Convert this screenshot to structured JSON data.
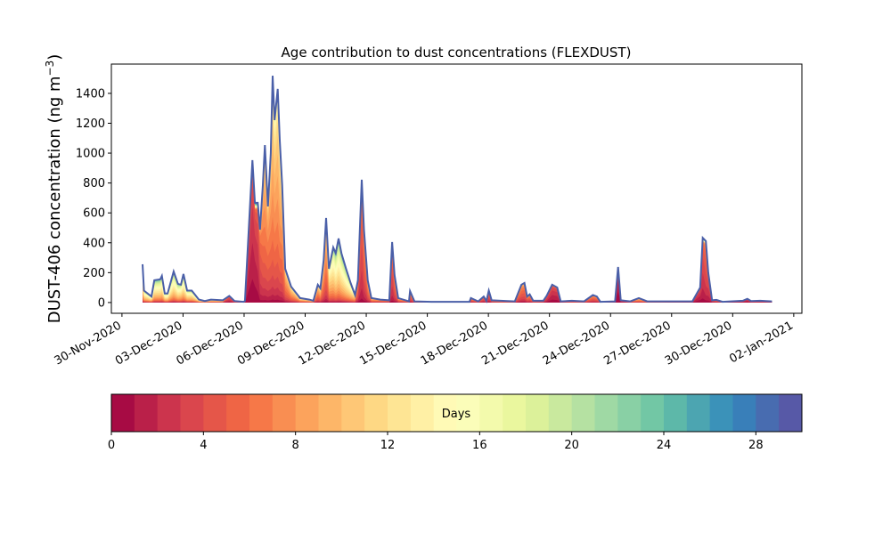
{
  "chart_data": {
    "type": "area",
    "stacked": true,
    "title": "Age contribution to dust concentrations (FLEXDUST)",
    "ylabel": "DUST-406 concentration (ng m",
    "ylabel_sup": "−3",
    "ylabel_close": ")",
    "xlabel": "",
    "ylim": [
      -72,
      1596
    ],
    "xlim_days_from_30Nov2020": [
      -0.52,
      33.4
    ],
    "yticks": [
      0,
      200,
      400,
      600,
      800,
      1000,
      1200,
      1400
    ],
    "xticks": [
      {
        "day": 0,
        "label": "30-Nov-2020"
      },
      {
        "day": 3,
        "label": "03-Dec-2020"
      },
      {
        "day": 6,
        "label": "06-Dec-2020"
      },
      {
        "day": 9,
        "label": "09-Dec-2020"
      },
      {
        "day": 12,
        "label": "12-Dec-2020"
      },
      {
        "day": 15,
        "label": "15-Dec-2020"
      },
      {
        "day": 18,
        "label": "18-Dec-2020"
      },
      {
        "day": 21,
        "label": "21-Dec-2020"
      },
      {
        "day": 24,
        "label": "24-Dec-2020"
      },
      {
        "day": 27,
        "label": "27-Dec-2020"
      },
      {
        "day": 30,
        "label": "30-Dec-2020"
      },
      {
        "day": 33,
        "label": "02-Jan-2021"
      }
    ],
    "series_note": "total concentration with approximate dominant age (days) per time step",
    "series": [
      [
        1.01,
        256,
        12
      ],
      [
        1.08,
        80,
        12
      ],
      [
        1.45,
        40,
        12
      ],
      [
        1.59,
        149,
        13
      ],
      [
        1.88,
        155,
        13
      ],
      [
        1.96,
        179,
        13
      ],
      [
        2.1,
        60,
        12
      ],
      [
        2.24,
        60,
        12
      ],
      [
        2.54,
        208,
        13
      ],
      [
        2.75,
        125,
        13
      ],
      [
        2.9,
        119,
        12
      ],
      [
        3.02,
        191,
        13
      ],
      [
        3.2,
        80,
        12
      ],
      [
        3.43,
        80,
        12
      ],
      [
        3.78,
        20,
        11
      ],
      [
        4.07,
        10,
        10
      ],
      [
        4.37,
        20,
        10
      ],
      [
        4.95,
        15,
        9
      ],
      [
        5.27,
        44,
        3
      ],
      [
        5.53,
        10,
        5
      ],
      [
        5.97,
        5,
        5
      ],
      [
        6.04,
        10,
        3
      ],
      [
        6.19,
        390,
        2
      ],
      [
        6.41,
        953,
        2
      ],
      [
        6.53,
        667,
        2
      ],
      [
        6.67,
        667,
        2.5
      ],
      [
        6.78,
        488,
        4
      ],
      [
        6.92,
        786,
        6
      ],
      [
        7.02,
        1054,
        7
      ],
      [
        7.17,
        643,
        6
      ],
      [
        7.31,
        1000,
        7
      ],
      [
        7.4,
        1518,
        8
      ],
      [
        7.5,
        1221,
        8
      ],
      [
        7.65,
        1430,
        8
      ],
      [
        7.75,
        1084,
        8
      ],
      [
        7.87,
        786,
        7
      ],
      [
        8.02,
        226,
        7
      ],
      [
        8.31,
        107,
        8
      ],
      [
        8.75,
        30,
        9
      ],
      [
        9.2,
        20,
        9
      ],
      [
        9.4,
        12,
        8
      ],
      [
        9.62,
        119,
        7
      ],
      [
        9.75,
        95,
        8
      ],
      [
        9.91,
        286,
        7
      ],
      [
        10.03,
        566,
        7
      ],
      [
        10.17,
        226,
        10
      ],
      [
        10.38,
        369,
        12
      ],
      [
        10.5,
        330,
        13
      ],
      [
        10.64,
        429,
        13
      ],
      [
        10.78,
        330,
        13
      ],
      [
        11.01,
        226,
        13
      ],
      [
        11.23,
        131,
        12
      ],
      [
        11.45,
        50,
        9
      ],
      [
        11.59,
        149,
        5
      ],
      [
        11.78,
        822,
        4
      ],
      [
        11.89,
        488,
        5
      ],
      [
        12.07,
        149,
        6
      ],
      [
        12.25,
        30,
        7
      ],
      [
        12.69,
        20,
        6
      ],
      [
        13.13,
        15,
        5
      ],
      [
        13.27,
        405,
        4
      ],
      [
        13.39,
        185,
        5
      ],
      [
        13.57,
        30,
        6
      ],
      [
        14.1,
        8,
        6
      ],
      [
        14.15,
        77,
        5
      ],
      [
        14.37,
        8,
        6
      ],
      [
        15.2,
        5,
        10
      ],
      [
        17.07,
        5,
        8
      ],
      [
        17.14,
        30,
        5
      ],
      [
        17.5,
        8,
        5
      ],
      [
        17.77,
        40,
        4
      ],
      [
        17.9,
        10,
        4
      ],
      [
        18.02,
        80,
        4
      ],
      [
        18.16,
        15,
        5
      ],
      [
        18.6,
        12,
        6
      ],
      [
        19.3,
        8,
        6
      ],
      [
        19.62,
        119,
        5
      ],
      [
        19.77,
        131,
        5
      ],
      [
        19.9,
        40,
        5
      ],
      [
        20.03,
        55,
        5
      ],
      [
        20.2,
        12,
        5
      ],
      [
        20.7,
        12,
        4
      ],
      [
        20.86,
        45,
        3
      ],
      [
        21.13,
        119,
        2
      ],
      [
        21.38,
        101,
        2
      ],
      [
        21.55,
        8,
        3
      ],
      [
        22.1,
        12,
        5
      ],
      [
        22.7,
        8,
        5
      ],
      [
        23.13,
        50,
        5
      ],
      [
        23.33,
        40,
        5
      ],
      [
        23.5,
        5,
        4
      ],
      [
        24.22,
        8,
        2
      ],
      [
        24.37,
        238,
        1
      ],
      [
        24.5,
        15,
        2
      ],
      [
        24.97,
        8,
        4
      ],
      [
        25.39,
        30,
        7
      ],
      [
        25.8,
        8,
        5
      ],
      [
        28.02,
        8,
        3
      ],
      [
        28.4,
        100,
        2
      ],
      [
        28.53,
        433,
        3
      ],
      [
        28.68,
        412,
        4
      ],
      [
        28.8,
        200,
        3
      ],
      [
        28.99,
        15,
        3
      ],
      [
        29.2,
        18,
        4
      ],
      [
        29.5,
        5,
        4
      ],
      [
        30.5,
        12,
        2
      ],
      [
        30.72,
        25,
        2
      ],
      [
        30.9,
        10,
        3
      ],
      [
        31.35,
        12,
        3
      ],
      [
        31.93,
        8,
        3
      ]
    ],
    "colorbar": {
      "label": "Days",
      "range": [
        0,
        30
      ],
      "n_colors": 30,
      "ticks": [
        0,
        4,
        8,
        12,
        16,
        20,
        24,
        28
      ],
      "colormap_anchors": [
        "#9e0142",
        "#d53e4f",
        "#f46d43",
        "#fdae61",
        "#fee08b",
        "#ffffbf",
        "#e6f598",
        "#abdda4",
        "#66c2a5",
        "#3288bd",
        "#5e4fa2"
      ]
    },
    "top_line_color": "#4a5fa8"
  }
}
